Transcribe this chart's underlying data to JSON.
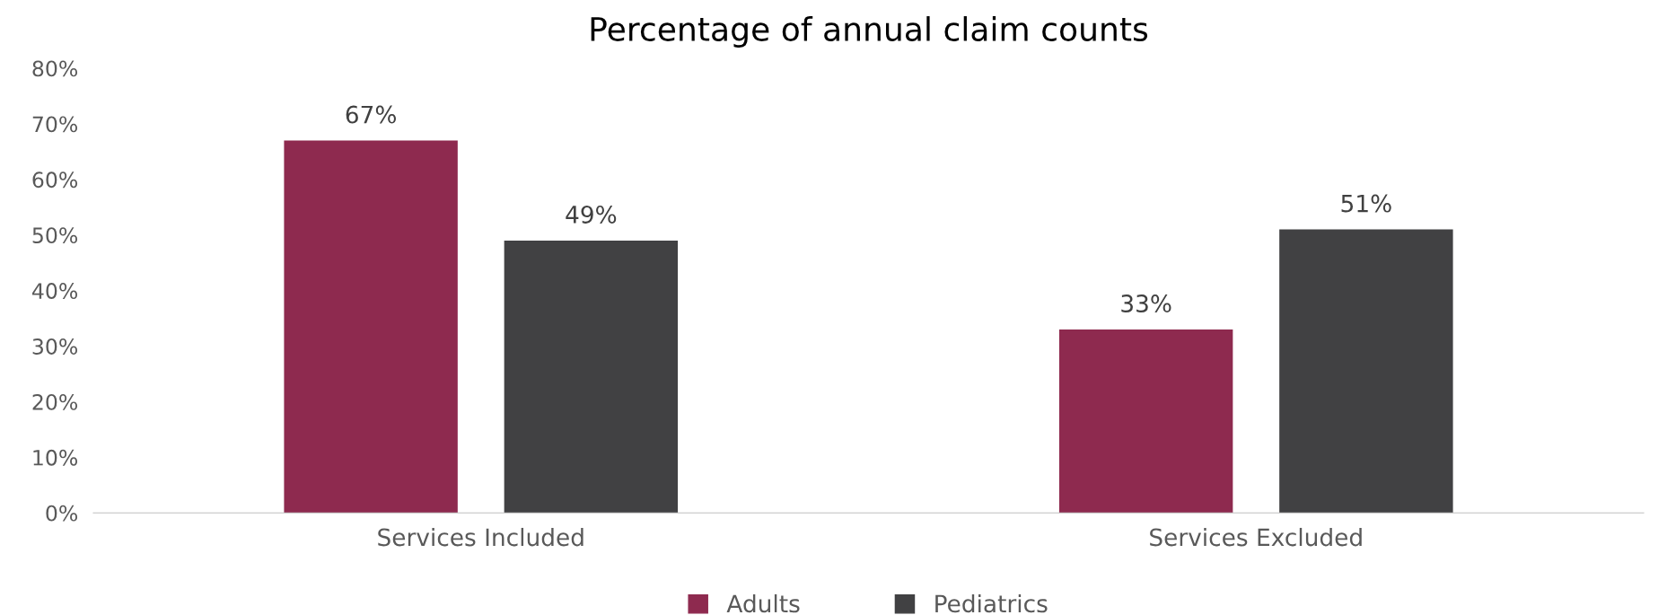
{
  "chart_data": {
    "type": "bar",
    "title": "Percentage of annual claim counts",
    "categories": [
      "Services Included",
      "Services Excluded"
    ],
    "series": [
      {
        "name": "Adults",
        "color": "#8e2a4f",
        "values": [
          67,
          33
        ],
        "value_labels": [
          "67%",
          "33%"
        ]
      },
      {
        "name": "Pediatrics",
        "color": "#414143",
        "values": [
          49,
          51
        ],
        "value_labels": [
          "49%",
          "51%"
        ]
      }
    ],
    "ylim": [
      0,
      80
    ],
    "yticks": [
      {
        "value": 0,
        "label": "0%"
      },
      {
        "value": 10,
        "label": "10%"
      },
      {
        "value": 20,
        "label": "20%"
      },
      {
        "value": 30,
        "label": "30%"
      },
      {
        "value": 40,
        "label": "40%"
      },
      {
        "value": 50,
        "label": "50%"
      },
      {
        "value": 60,
        "label": "60%"
      },
      {
        "value": 70,
        "label": "70%"
      },
      {
        "value": 80,
        "label": "80%"
      }
    ],
    "grid": false,
    "legend": "bottom"
  }
}
